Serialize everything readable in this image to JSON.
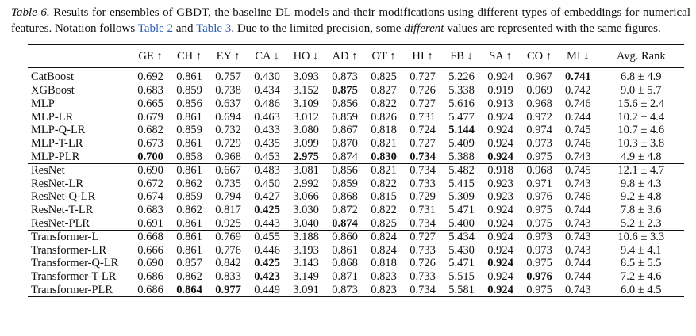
{
  "caption": {
    "label": "Table 6.",
    "segments": [
      {
        "text": " Results for ensembles of GBDT, the baseline DL models and their modifications using different types of embeddings for numerical features. Notation follows "
      },
      {
        "text": "Table 2",
        "style": "link"
      },
      {
        "text": " and "
      },
      {
        "text": "Table 3",
        "style": "link"
      },
      {
        "text": ". Due to the limited precision, some "
      },
      {
        "text": "different",
        "style": "italic"
      },
      {
        "text": " values are represented with the same figures."
      }
    ]
  },
  "table": {
    "headers": [
      "GE ↑",
      "CH ↑",
      "EY ↑",
      "CA ↓",
      "HO ↓",
      "AD ↑",
      "OT ↑",
      "HI ↑",
      "FB ↓",
      "SA ↑",
      "CO ↑",
      "MI ↓",
      "Avg. Rank"
    ],
    "groups": [
      {
        "rows": [
          {
            "name": "CatBoost",
            "cells": [
              {
                "text": "0.692"
              },
              {
                "text": "0.861"
              },
              {
                "text": "0.757"
              },
              {
                "text": "0.430"
              },
              {
                "text": "3.093"
              },
              {
                "text": "0.873"
              },
              {
                "text": "0.825"
              },
              {
                "text": "0.727"
              },
              {
                "text": "5.226"
              },
              {
                "text": "0.924"
              },
              {
                "text": "0.967"
              },
              {
                "text": "0.741",
                "bold": true
              },
              {
                "text": "6.8 ± 4.9"
              }
            ]
          },
          {
            "name": "XGBoost",
            "cells": [
              {
                "text": "0.683"
              },
              {
                "text": "0.859"
              },
              {
                "text": "0.738"
              },
              {
                "text": "0.434"
              },
              {
                "text": "3.152"
              },
              {
                "text": "0.875",
                "bold": true
              },
              {
                "text": "0.827"
              },
              {
                "text": "0.726"
              },
              {
                "text": "5.338"
              },
              {
                "text": "0.919"
              },
              {
                "text": "0.969"
              },
              {
                "text": "0.742"
              },
              {
                "text": "9.0 ± 5.7"
              }
            ]
          }
        ]
      },
      {
        "rows": [
          {
            "name": "MLP",
            "cells": [
              {
                "text": "0.665"
              },
              {
                "text": "0.856"
              },
              {
                "text": "0.637"
              },
              {
                "text": "0.486"
              },
              {
                "text": "3.109"
              },
              {
                "text": "0.856"
              },
              {
                "text": "0.822"
              },
              {
                "text": "0.727"
              },
              {
                "text": "5.616"
              },
              {
                "text": "0.913"
              },
              {
                "text": "0.968"
              },
              {
                "text": "0.746"
              },
              {
                "text": "15.6 ± 2.4"
              }
            ]
          },
          {
            "name": "MLP-LR",
            "cells": [
              {
                "text": "0.679"
              },
              {
                "text": "0.861"
              },
              {
                "text": "0.694"
              },
              {
                "text": "0.463"
              },
              {
                "text": "3.012"
              },
              {
                "text": "0.859"
              },
              {
                "text": "0.826"
              },
              {
                "text": "0.731"
              },
              {
                "text": "5.477"
              },
              {
                "text": "0.924"
              },
              {
                "text": "0.972"
              },
              {
                "text": "0.744"
              },
              {
                "text": "10.2 ± 4.4"
              }
            ]
          },
          {
            "name": "MLP-Q-LR",
            "cells": [
              {
                "text": "0.682"
              },
              {
                "text": "0.859"
              },
              {
                "text": "0.732"
              },
              {
                "text": "0.433"
              },
              {
                "text": "3.080"
              },
              {
                "text": "0.867"
              },
              {
                "text": "0.818"
              },
              {
                "text": "0.724"
              },
              {
                "text": "5.144",
                "bold": true
              },
              {
                "text": "0.924"
              },
              {
                "text": "0.974"
              },
              {
                "text": "0.745"
              },
              {
                "text": "10.7 ± 4.6"
              }
            ]
          },
          {
            "name": "MLP-T-LR",
            "cells": [
              {
                "text": "0.673"
              },
              {
                "text": "0.861"
              },
              {
                "text": "0.729"
              },
              {
                "text": "0.435"
              },
              {
                "text": "3.099"
              },
              {
                "text": "0.870"
              },
              {
                "text": "0.821"
              },
              {
                "text": "0.727"
              },
              {
                "text": "5.409"
              },
              {
                "text": "0.924"
              },
              {
                "text": "0.973"
              },
              {
                "text": "0.746"
              },
              {
                "text": "10.3 ± 3.8"
              }
            ]
          },
          {
            "name": "MLP-PLR",
            "cells": [
              {
                "text": "0.700",
                "bold": true
              },
              {
                "text": "0.858"
              },
              {
                "text": "0.968"
              },
              {
                "text": "0.453"
              },
              {
                "text": "2.975",
                "bold": true
              },
              {
                "text": "0.874"
              },
              {
                "text": "0.830",
                "bold": true
              },
              {
                "text": "0.734",
                "bold": true
              },
              {
                "text": "5.388"
              },
              {
                "text": "0.924",
                "bold": true
              },
              {
                "text": "0.975"
              },
              {
                "text": "0.743"
              },
              {
                "text": "4.9 ± 4.8"
              }
            ]
          }
        ]
      },
      {
        "rows": [
          {
            "name": "ResNet",
            "cells": [
              {
                "text": "0.690"
              },
              {
                "text": "0.861"
              },
              {
                "text": "0.667"
              },
              {
                "text": "0.483"
              },
              {
                "text": "3.081"
              },
              {
                "text": "0.856"
              },
              {
                "text": "0.821"
              },
              {
                "text": "0.734"
              },
              {
                "text": "5.482"
              },
              {
                "text": "0.918"
              },
              {
                "text": "0.968"
              },
              {
                "text": "0.745"
              },
              {
                "text": "12.1 ± 4.7"
              }
            ]
          },
          {
            "name": "ResNet-LR",
            "cells": [
              {
                "text": "0.672"
              },
              {
                "text": "0.862"
              },
              {
                "text": "0.735"
              },
              {
                "text": "0.450"
              },
              {
                "text": "2.992"
              },
              {
                "text": "0.859"
              },
              {
                "text": "0.822"
              },
              {
                "text": "0.733"
              },
              {
                "text": "5.415"
              },
              {
                "text": "0.923"
              },
              {
                "text": "0.971"
              },
              {
                "text": "0.743"
              },
              {
                "text": "9.8 ± 4.3"
              }
            ]
          },
          {
            "name": "ResNet-Q-LR",
            "cells": [
              {
                "text": "0.674"
              },
              {
                "text": "0.859"
              },
              {
                "text": "0.794"
              },
              {
                "text": "0.427"
              },
              {
                "text": "3.066"
              },
              {
                "text": "0.868"
              },
              {
                "text": "0.815"
              },
              {
                "text": "0.729"
              },
              {
                "text": "5.309"
              },
              {
                "text": "0.923"
              },
              {
                "text": "0.976"
              },
              {
                "text": "0.746"
              },
              {
                "text": "9.2 ± 4.8"
              }
            ]
          },
          {
            "name": "ResNet-T-LR",
            "cells": [
              {
                "text": "0.683"
              },
              {
                "text": "0.862"
              },
              {
                "text": "0.817"
              },
              {
                "text": "0.425",
                "bold": true
              },
              {
                "text": "3.030"
              },
              {
                "text": "0.872"
              },
              {
                "text": "0.822"
              },
              {
                "text": "0.731"
              },
              {
                "text": "5.471"
              },
              {
                "text": "0.924"
              },
              {
                "text": "0.975"
              },
              {
                "text": "0.744"
              },
              {
                "text": "7.8 ± 3.6"
              }
            ]
          },
          {
            "name": "ResNet-PLR",
            "cells": [
              {
                "text": "0.691"
              },
              {
                "text": "0.861"
              },
              {
                "text": "0.925"
              },
              {
                "text": "0.443"
              },
              {
                "text": "3.040"
              },
              {
                "text": "0.874",
                "bold": true
              },
              {
                "text": "0.825"
              },
              {
                "text": "0.734"
              },
              {
                "text": "5.400"
              },
              {
                "text": "0.924"
              },
              {
                "text": "0.975"
              },
              {
                "text": "0.743"
              },
              {
                "text": "5.2 ± 2.3"
              }
            ]
          }
        ]
      },
      {
        "rows": [
          {
            "name": "Transformer-L",
            "cells": [
              {
                "text": "0.668"
              },
              {
                "text": "0.861"
              },
              {
                "text": "0.769"
              },
              {
                "text": "0.455"
              },
              {
                "text": "3.188"
              },
              {
                "text": "0.860"
              },
              {
                "text": "0.824"
              },
              {
                "text": "0.727"
              },
              {
                "text": "5.434"
              },
              {
                "text": "0.924"
              },
              {
                "text": "0.973"
              },
              {
                "text": "0.743"
              },
              {
                "text": "10.6 ± 3.3"
              }
            ]
          },
          {
            "name": "Transformer-LR",
            "cells": [
              {
                "text": "0.666"
              },
              {
                "text": "0.861"
              },
              {
                "text": "0.776"
              },
              {
                "text": "0.446"
              },
              {
                "text": "3.193"
              },
              {
                "text": "0.861"
              },
              {
                "text": "0.824"
              },
              {
                "text": "0.733"
              },
              {
                "text": "5.430"
              },
              {
                "text": "0.924"
              },
              {
                "text": "0.973"
              },
              {
                "text": "0.743"
              },
              {
                "text": "9.4 ± 4.1"
              }
            ]
          },
          {
            "name": "Transformer-Q-LR",
            "cells": [
              {
                "text": "0.690"
              },
              {
                "text": "0.857"
              },
              {
                "text": "0.842"
              },
              {
                "text": "0.425",
                "bold": true
              },
              {
                "text": "3.143"
              },
              {
                "text": "0.868"
              },
              {
                "text": "0.818"
              },
              {
                "text": "0.726"
              },
              {
                "text": "5.471"
              },
              {
                "text": "0.924",
                "bold": true
              },
              {
                "text": "0.975"
              },
              {
                "text": "0.744"
              },
              {
                "text": "8.5 ± 5.5"
              }
            ]
          },
          {
            "name": "Transformer-T-LR",
            "cells": [
              {
                "text": "0.686"
              },
              {
                "text": "0.862"
              },
              {
                "text": "0.833"
              },
              {
                "text": "0.423",
                "bold": true
              },
              {
                "text": "3.149"
              },
              {
                "text": "0.871"
              },
              {
                "text": "0.823"
              },
              {
                "text": "0.733"
              },
              {
                "text": "5.515"
              },
              {
                "text": "0.924"
              },
              {
                "text": "0.976",
                "bold": true
              },
              {
                "text": "0.744"
              },
              {
                "text": "7.2 ± 4.6"
              }
            ]
          },
          {
            "name": "Transformer-PLR",
            "cells": [
              {
                "text": "0.686"
              },
              {
                "text": "0.864",
                "bold": true
              },
              {
                "text": "0.977",
                "bold": true
              },
              {
                "text": "0.449"
              },
              {
                "text": "3.091"
              },
              {
                "text": "0.873"
              },
              {
                "text": "0.823"
              },
              {
                "text": "0.734"
              },
              {
                "text": "5.581"
              },
              {
                "text": "0.924",
                "bold": true
              },
              {
                "text": "0.975"
              },
              {
                "text": "0.743"
              },
              {
                "text": "6.0 ± 4.5"
              }
            ]
          }
        ]
      }
    ]
  }
}
